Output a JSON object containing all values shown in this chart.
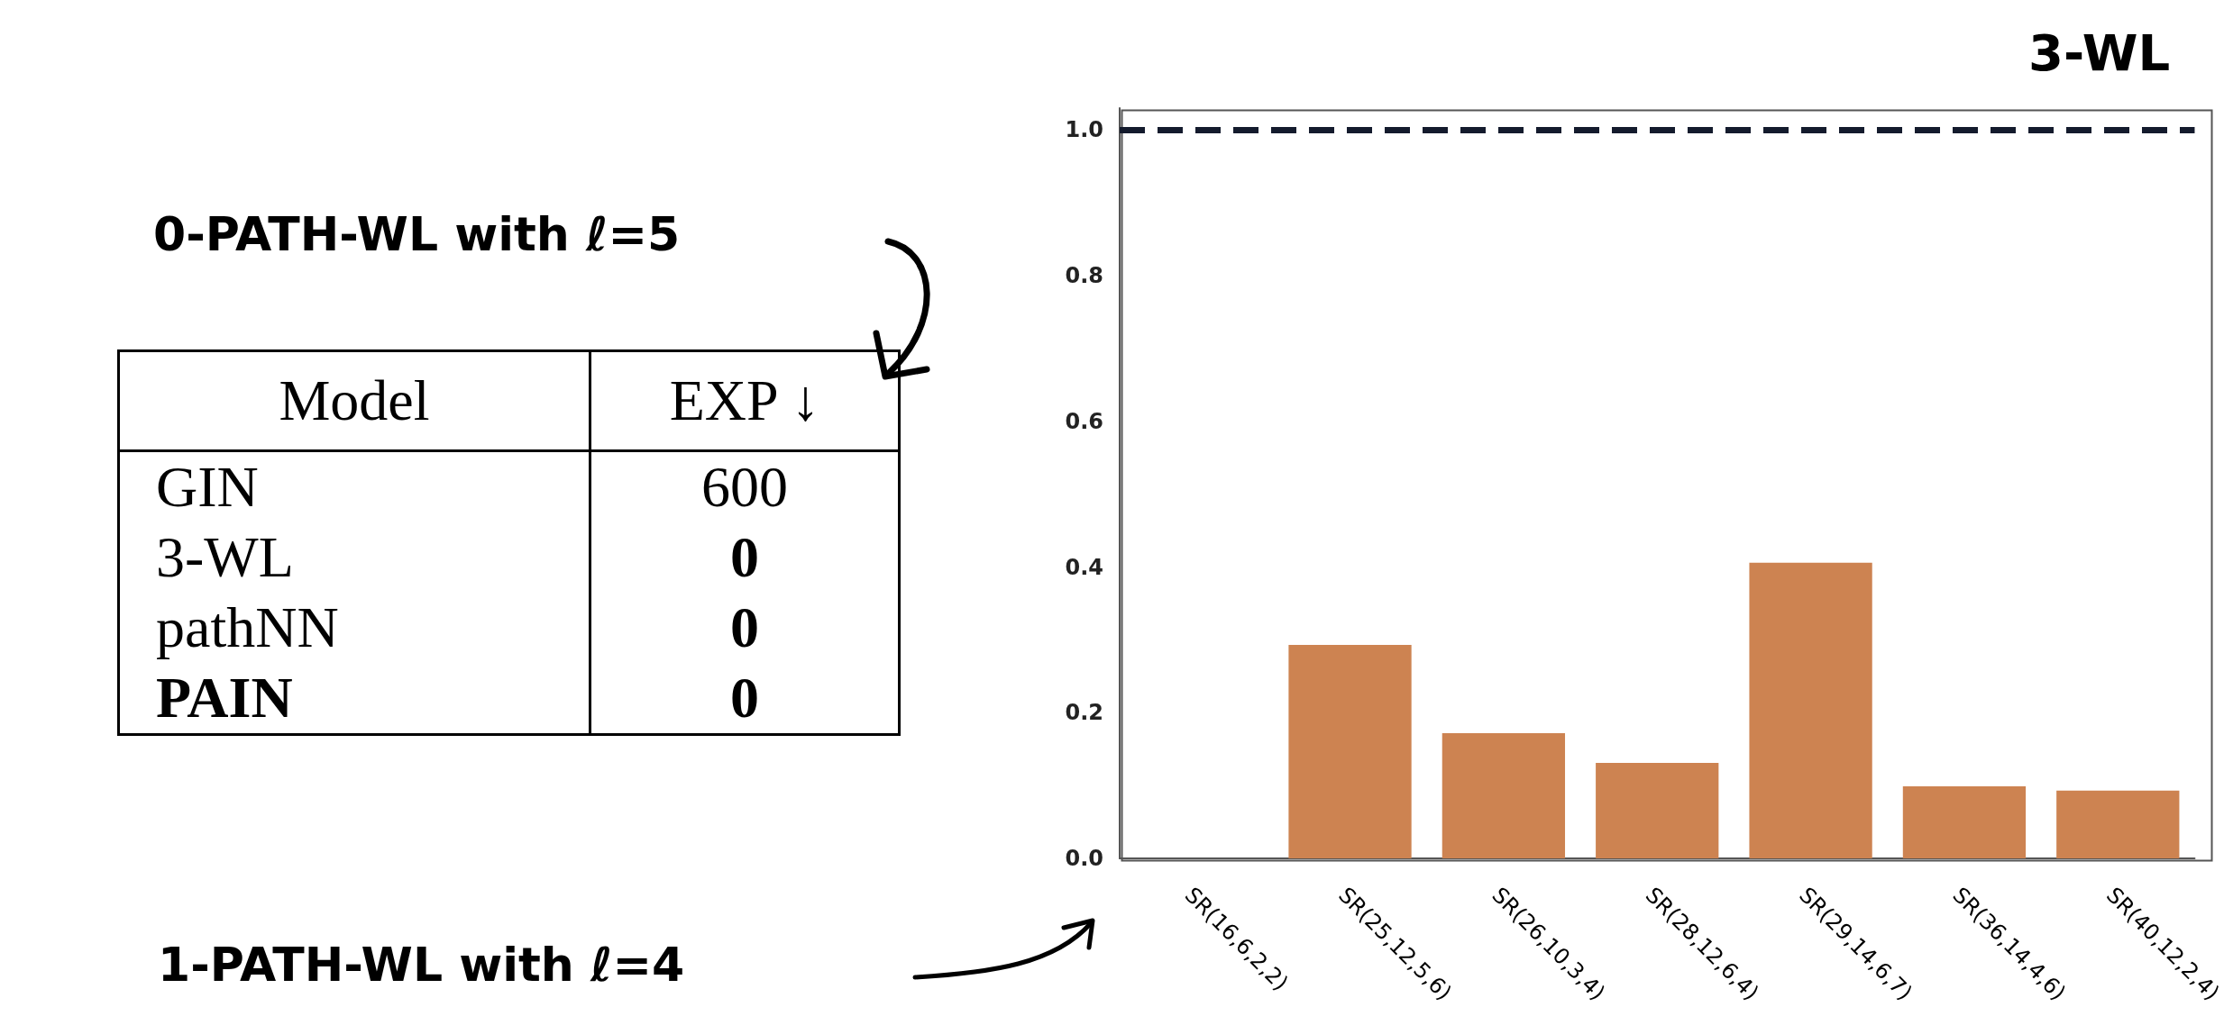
{
  "chart_data": [
    {
      "type": "other",
      "categories": [
        "GIN",
        "3-WL",
        "pathNN",
        "PAIN"
      ],
      "values": [
        600,
        0,
        0,
        0
      ],
      "data_labels": true,
      "annotations": [
        "Model",
        "EXP ↓",
        "0-PATH-WL with ℓ=5"
      ]
    },
    {
      "type": "bar",
      "categories": [
        "SR(16,6,2,2)",
        "SR(25,12,5,6)",
        "SR(26,10,3,4)",
        "SR(28,12,6,4)",
        "SR(29,14,6,7)",
        "SR(36,14,4,6)",
        "SR(40,12,2,4)"
      ],
      "values": [
        0,
        0.293,
        0.172,
        0.131,
        0.406,
        0.099,
        0.093
      ],
      "color": "#cd8351",
      "ylim": [
        0,
        1.03
      ],
      "yticks": [
        {
          "value": 0,
          "label": "0.0"
        },
        {
          "value": 0.2,
          "label": "0.2"
        },
        {
          "value": 0.4,
          "label": "0.4"
        },
        {
          "value": 0.6,
          "label": "0.6"
        },
        {
          "value": 0.8,
          "label": "0.8"
        },
        {
          "value": 1,
          "label": "1.0"
        }
      ],
      "grid": false,
      "ref_lines": [
        {
          "axis": "y",
          "value": 1,
          "label": "3-WL",
          "color": "#141b2d",
          "line_style": "dashed"
        }
      ],
      "annotations": [
        "1-PATH-WL with ℓ=4"
      ]
    }
  ]
}
